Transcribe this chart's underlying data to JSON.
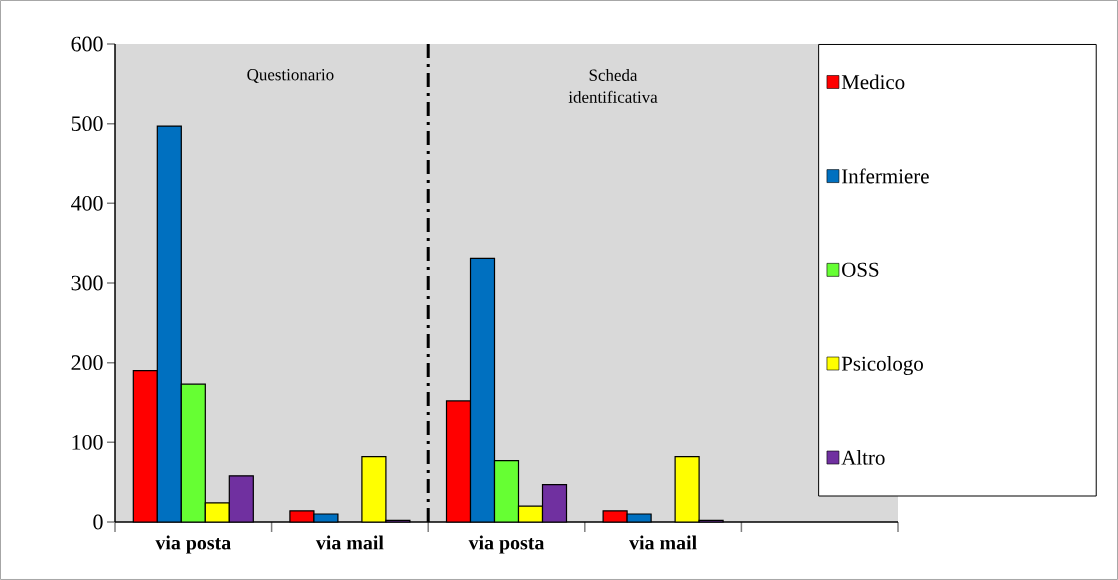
{
  "chart_data": {
    "type": "bar",
    "categories": [
      "via posta",
      "via mail",
      "via posta",
      "via mail",
      null
    ],
    "series": [
      {
        "name": "Medico",
        "color": "#ff0000",
        "values": [
          190,
          14,
          152,
          14,
          null
        ]
      },
      {
        "name": "Infermiere",
        "color": "#0070c0",
        "values": [
          497,
          10,
          331,
          10,
          null
        ]
      },
      {
        "name": "OSS",
        "color": "#66ff33",
        "values": [
          173,
          null,
          77,
          null,
          null
        ]
      },
      {
        "name": "Psicologo",
        "color": "#ffff00",
        "values": [
          24,
          82,
          20,
          82,
          null
        ]
      },
      {
        "name": "Altro",
        "color": "#7030a0",
        "values": [
          58,
          2,
          47,
          2,
          null
        ]
      }
    ],
    "ylim": [
      0,
      600
    ],
    "yticks": [
      0,
      100,
      200,
      300,
      400,
      500,
      600
    ],
    "annotations": [
      "Questionario",
      "Scheda identificativa"
    ],
    "grid": false,
    "legend": "right"
  }
}
